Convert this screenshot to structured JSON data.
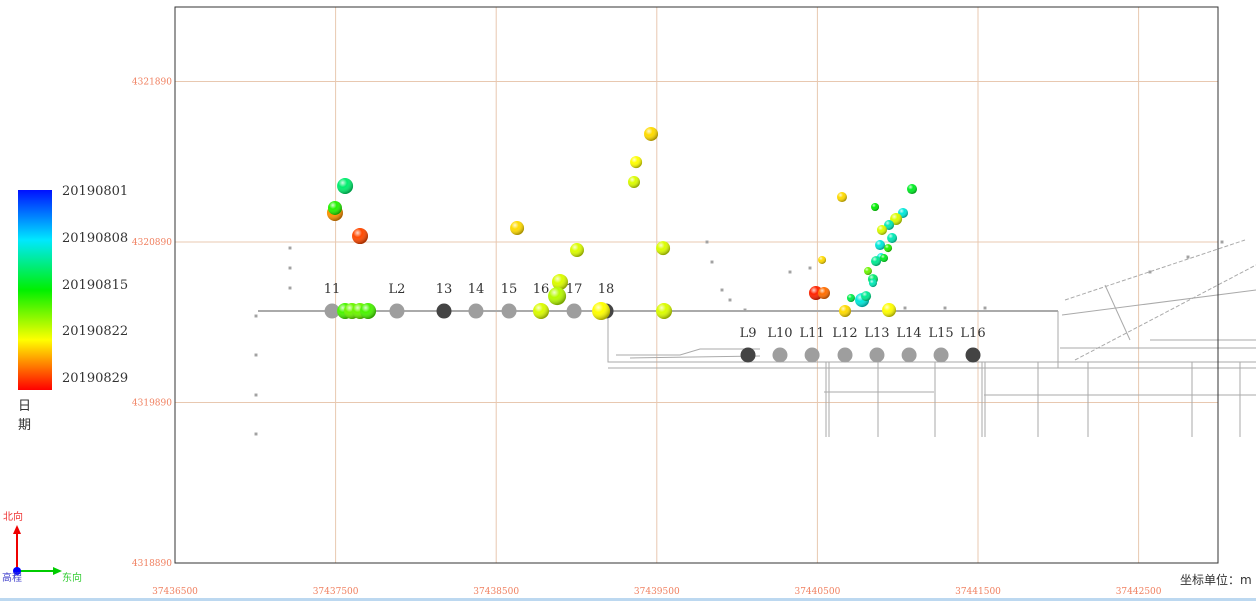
{
  "legend": {
    "title": "日期",
    "labels": [
      "20190801",
      "20190808",
      "20190815",
      "20190822",
      "20190829"
    ]
  },
  "compass": {
    "north": "北向",
    "east": "东向",
    "elevation": "高程"
  },
  "unit_label": "坐标单位：m",
  "chart_data": {
    "type": "scatter",
    "xlim": [
      37436500,
      37443000
    ],
    "ylim": [
      4318890,
      4322355
    ],
    "x_ticks": [
      "37436500",
      "37437500",
      "37438500",
      "37439500",
      "37440500",
      "37441500",
      "37442500"
    ],
    "y_ticks": [
      "4318890",
      "4319890",
      "4320890",
      "4321890"
    ],
    "grid": true,
    "colorbar": {
      "min": 20190801,
      "max": 20190829,
      "colors": [
        "#0010ff",
        "#00e8ff",
        "#00f000",
        "#ffff00",
        "#ff0000"
      ]
    },
    "stations": [
      {
        "name": "11",
        "x": 37437478,
        "y": 4320460,
        "active": false
      },
      {
        "name": "L2",
        "x": 37437882,
        "y": 4320460,
        "active": false
      },
      {
        "name": "13",
        "x": 37438175,
        "y": 4320460,
        "active": true
      },
      {
        "name": "14",
        "x": 37438374,
        "y": 4320460,
        "active": false
      },
      {
        "name": "15",
        "x": 37438580,
        "y": 4320460,
        "active": false
      },
      {
        "name": "16",
        "x": 37438779,
        "y": 4320460,
        "active": false
      },
      {
        "name": "17",
        "x": 37438985,
        "y": 4320460,
        "active": false
      },
      {
        "name": "18",
        "x": 37439184,
        "y": 4320460,
        "active": true
      },
      {
        "name": "L9",
        "x": 37440068,
        "y": 4320186,
        "active": true
      },
      {
        "name": "L10",
        "x": 37440267,
        "y": 4320186,
        "active": false
      },
      {
        "name": "L11",
        "x": 37440467,
        "y": 4320186,
        "active": false
      },
      {
        "name": "L12",
        "x": 37440672,
        "y": 4320186,
        "active": false
      },
      {
        "name": "L13",
        "x": 37440871,
        "y": 4320186,
        "active": false
      },
      {
        "name": "L14",
        "x": 37441071,
        "y": 4320186,
        "active": false
      },
      {
        "name": "L15",
        "x": 37441270,
        "y": 4320186,
        "active": false
      },
      {
        "name": "L16",
        "x": 37441469,
        "y": 4320186,
        "active": true
      }
    ],
    "events": [
      {
        "x": 37437559,
        "y": 4321239,
        "date": 20190812,
        "size": 8
      },
      {
        "x": 37437496,
        "y": 4321071,
        "date": 20190825,
        "size": 8
      },
      {
        "x": 37437496,
        "y": 4321102,
        "date": 20190816,
        "size": 7
      },
      {
        "x": 37437652,
        "y": 4320927,
        "date": 20190827,
        "size": 8
      },
      {
        "x": 37438630,
        "y": 4320977,
        "date": 20190823,
        "size": 7
      },
      {
        "x": 37439464,
        "y": 4321563,
        "date": 20190823,
        "size": 7
      },
      {
        "x": 37439371,
        "y": 4321388,
        "date": 20190822,
        "size": 6
      },
      {
        "x": 37439358,
        "y": 4321264,
        "date": 20190821,
        "size": 6
      },
      {
        "x": 37439003,
        "y": 4320840,
        "date": 20190821,
        "size": 7
      },
      {
        "x": 37439539,
        "y": 4320852,
        "date": 20190821,
        "size": 7
      },
      {
        "x": 37438897,
        "y": 4320641,
        "date": 20190821,
        "size": 8
      },
      {
        "x": 37438879,
        "y": 4320553,
        "date": 20190820,
        "size": 9
      },
      {
        "x": 37438779,
        "y": 4320460,
        "date": 20190821,
        "size": 8
      },
      {
        "x": 37439153,
        "y": 4320460,
        "date": 20190822,
        "size": 9
      },
      {
        "x": 37439545,
        "y": 4320460,
        "date": 20190821,
        "size": 8
      },
      {
        "x": 37437559,
        "y": 4320460,
        "date": 20190817,
        "size": 8
      },
      {
        "x": 37437602,
        "y": 4320460,
        "date": 20190818,
        "size": 8
      },
      {
        "x": 37437652,
        "y": 4320460,
        "date": 20190818,
        "size": 8
      },
      {
        "x": 37437702,
        "y": 4320460,
        "date": 20190817,
        "size": 8
      },
      {
        "x": 37440653,
        "y": 4321170,
        "date": 20190823,
        "size": 5
      },
      {
        "x": 37440859,
        "y": 4321108,
        "date": 20190815,
        "size": 4
      },
      {
        "x": 37441089,
        "y": 4321220,
        "date": 20190814,
        "size": 5
      },
      {
        "x": 37441033,
        "y": 4321071,
        "date": 20190809,
        "size": 5
      },
      {
        "x": 37440990,
        "y": 4321033,
        "date": 20190821,
        "size": 6
      },
      {
        "x": 37440946,
        "y": 4320996,
        "date": 20190810,
        "size": 5
      },
      {
        "x": 37440902,
        "y": 4320965,
        "date": 20190821,
        "size": 5
      },
      {
        "x": 37440965,
        "y": 4320915,
        "date": 20190810,
        "size": 5
      },
      {
        "x": 37440890,
        "y": 4320871,
        "date": 20190809,
        "size": 5
      },
      {
        "x": 37440940,
        "y": 4320852,
        "date": 20190816,
        "size": 4
      },
      {
        "x": 37440896,
        "y": 4320796,
        "date": 20190809,
        "size": 4
      },
      {
        "x": 37440865,
        "y": 4320771,
        "date": 20190811,
        "size": 5
      },
      {
        "x": 37440915,
        "y": 4320790,
        "date": 20190814,
        "size": 4
      },
      {
        "x": 37440815,
        "y": 4320709,
        "date": 20190818,
        "size": 4
      },
      {
        "x": 37440846,
        "y": 4320659,
        "date": 20190812,
        "size": 5
      },
      {
        "x": 37440846,
        "y": 4320634,
        "date": 20190810,
        "size": 4
      },
      {
        "x": 37440529,
        "y": 4320778,
        "date": 20190823,
        "size": 4
      },
      {
        "x": 37440491,
        "y": 4320572,
        "date": 20190828,
        "size": 7
      },
      {
        "x": 37440541,
        "y": 4320572,
        "date": 20190826,
        "size": 6
      },
      {
        "x": 37440709,
        "y": 4320541,
        "date": 20190813,
        "size": 4
      },
      {
        "x": 37440778,
        "y": 4320528,
        "date": 20190809,
        "size": 7
      },
      {
        "x": 37440803,
        "y": 4320553,
        "date": 20190811,
        "size": 5
      },
      {
        "x": 37440672,
        "y": 4320460,
        "date": 20190823,
        "size": 6
      },
      {
        "x": 37440946,
        "y": 4320466,
        "date": 20190822,
        "size": 7
      }
    ]
  }
}
